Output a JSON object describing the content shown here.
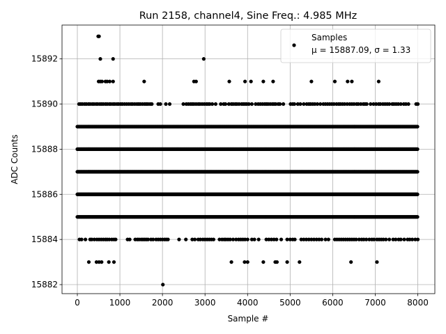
{
  "chart_data": {
    "type": "scatter",
    "title": "Run 2158, channel4, Sine Freq.: 4.985 MHz",
    "xlabel": "Sample #",
    "ylabel": "ADC Counts",
    "xlim": [
      -360,
      8400
    ],
    "ylim": [
      15881.6,
      15893.5
    ],
    "xticks": [
      0,
      1000,
      2000,
      3000,
      4000,
      5000,
      6000,
      7000,
      8000
    ],
    "yticks": [
      15882,
      15884,
      15886,
      15888,
      15890,
      15892
    ],
    "grid": true,
    "legend_placement": "upper right",
    "legend": {
      "label": "Samples",
      "stats": "μ = 15887.09, σ = 1.33"
    },
    "marker_color": "#000000",
    "level_bands": [
      {
        "y": 15885,
        "x_range": [
          0,
          8000
        ],
        "density": "dense"
      },
      {
        "y": 15886,
        "x_range": [
          0,
          8000
        ],
        "density": "dense"
      },
      {
        "y": 15887,
        "x_range": [
          0,
          8000
        ],
        "density": "dense"
      },
      {
        "y": 15888,
        "x_range": [
          0,
          8000
        ],
        "density": "dense"
      },
      {
        "y": 15889,
        "x_range": [
          0,
          8000
        ],
        "density": "dense"
      }
    ],
    "sparse_points": [
      {
        "y": 15893,
        "x": [
          490,
          510
        ]
      },
      {
        "y": 15892,
        "x": [
          540,
          840,
          2970
        ]
      },
      {
        "y": 15891,
        "x": [
          500,
          540,
          580,
          660,
          700,
          760,
          840,
          1570,
          2740,
          2790,
          3570,
          3940,
          4080,
          4370,
          4600,
          5500,
          6050,
          6350,
          6450,
          7080
        ]
      },
      {
        "y": 15890,
        "x": [
          40,
          80,
          120,
          170,
          210,
          260,
          300,
          350,
          390,
          440,
          480,
          530,
          570,
          610,
          660,
          700,
          750,
          790,
          840,
          880,
          930,
          970,
          1020,
          1060,
          1110,
          1160,
          1210,
          1260,
          1300,
          1350,
          1400,
          1440,
          1480,
          1530,
          1580,
          1620,
          1660,
          1710,
          1750,
          1900,
          1950,
          2080,
          2170,
          2490,
          2560,
          2610,
          2660,
          2700,
          2740,
          2790,
          2840,
          2880,
          2930,
          2980,
          3030,
          3070,
          3110,
          3170,
          3250,
          3370,
          3440,
          3480,
          3560,
          3620,
          3660,
          3710,
          3750,
          3800,
          3860,
          3900,
          3940,
          3980,
          4030,
          4100,
          4190,
          4250,
          4300,
          4350,
          4400,
          4440,
          4480,
          4530,
          4580,
          4620,
          4660,
          4720,
          4760,
          4840,
          5010,
          5060,
          5100,
          5180,
          5240,
          5320,
          5390,
          5440,
          5480,
          5530,
          5580,
          5640,
          5710,
          5780,
          5830,
          5880,
          5930,
          5980,
          6030,
          6090,
          6140,
          6180,
          6230,
          6280,
          6340,
          6400,
          6450,
          6500,
          6560,
          6600,
          6660,
          6720,
          6760,
          6800,
          6890,
          6960,
          7020,
          7080,
          7120,
          7180,
          7230,
          7280,
          7330,
          7400,
          7440,
          7490,
          7540,
          7600,
          7670,
          7720,
          7780,
          7960,
          8000
        ]
      },
      {
        "y": 15884,
        "x": [
          50,
          100,
          190,
          300,
          340,
          400,
          460,
          510,
          560,
          610,
          660,
          700,
          750,
          810,
          860,
          900,
          1180,
          1230,
          1360,
          1410,
          1450,
          1500,
          1540,
          1580,
          1620,
          1660,
          1730,
          1780,
          1850,
          1900,
          1950,
          2000,
          2050,
          2090,
          2130,
          2390,
          2550,
          2700,
          2760,
          2840,
          2890,
          2950,
          3000,
          3050,
          3100,
          3150,
          3200,
          3340,
          3400,
          3450,
          3490,
          3540,
          3590,
          3660,
          3730,
          3790,
          3840,
          3890,
          3940,
          4000,
          4100,
          4160,
          4260,
          4440,
          4500,
          4560,
          4620,
          4680,
          4790,
          4930,
          5000,
          5060,
          5110,
          5260,
          5320,
          5380,
          5440,
          5500,
          5560,
          5620,
          5680,
          5740,
          5830,
          5900,
          6050,
          6100,
          6150,
          6200,
          6250,
          6300,
          6350,
          6400,
          6450,
          6500,
          6550,
          6620,
          6680,
          6730,
          6790,
          6860,
          6920,
          6970,
          7040,
          7090,
          7140,
          7190,
          7250,
          7330,
          7420,
          7480,
          7550,
          7600,
          7680,
          7760,
          7810,
          7870,
          7940,
          8000
        ]
      },
      {
        "y": 15883,
        "x": [
          270,
          450,
          510,
          570,
          740,
          860,
          3620,
          3930,
          4000,
          4370,
          4650,
          4690,
          4930,
          5220,
          6430,
          7040
        ]
      },
      {
        "y": 15882,
        "x": [
          2010
        ]
      }
    ]
  }
}
